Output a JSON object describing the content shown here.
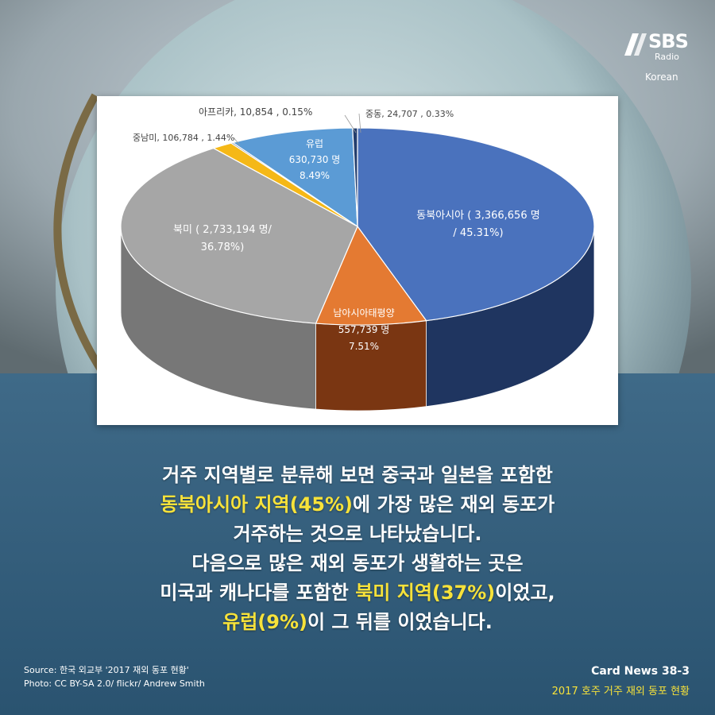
{
  "brand": {
    "name": "SBS",
    "sub": "Radio",
    "lang": "Korean"
  },
  "caption": {
    "l1": "거주 지역별로 분류해 보면 중국과 일본을 포함한",
    "l2_hl": "동북아시아 지역(45%)",
    "l2_rest": "에 가장 많은 재외 동포가",
    "l3": "거주하는 것으로 나타났습니다.",
    "l4": "다음으로 많은 재외 동포가 생활하는 곳은",
    "l5_pre": "미국과 캐나다를 포함한 ",
    "l5_hl": "북미 지역(37%)",
    "l5_post": "이었고,",
    "l6_hl": "유럽(9%)",
    "l6_post": "이 그 뒤를 이었습니다."
  },
  "source": {
    "line1": "Source: 한국 외교부 '2017 재외 동포 현황'",
    "line2": "Photo: CC BY-SA 2.0/ flickr/ Andrew Smith"
  },
  "card": {
    "number": "Card News 38-3",
    "subtitle": "2017 호주 거주 재외 동포 현황"
  },
  "chart_data": {
    "type": "pie",
    "slices": [
      {
        "name": "동북아시아",
        "value": 3366656,
        "percent": 45.31,
        "color": "#4a72bd",
        "side": "#1f3560",
        "label": [
          "동북아시아 ( 3,366,656 명",
          "/ 45.31%)"
        ]
      },
      {
        "name": "남아시아태평양",
        "value": 557739,
        "percent": 7.51,
        "color": "#e47a32",
        "side": "#7a3612",
        "label": [
          "남아시아태평양",
          "557,739 명",
          "7.51%"
        ]
      },
      {
        "name": "북미",
        "value": 2733194,
        "percent": 36.78,
        "color": "#a6a6a6",
        "side": "#777777",
        "label": [
          "북미 ( 2,733,194 명/",
          "36.78%)"
        ]
      },
      {
        "name": "중남미",
        "value": 106784,
        "percent": 1.44,
        "color": "#f5b817",
        "side": "#9a7008",
        "label": [
          "중남미, 106,784 , 1.44%"
        ]
      },
      {
        "name": "아프리카",
        "value": 10854,
        "percent": 0.15,
        "color": "#2b4f8a",
        "side": "#1a2e52",
        "label": [
          "아프리카,   10,854  ,  0.15%"
        ]
      },
      {
        "name": "유럽",
        "value": 630730,
        "percent": 8.49,
        "color": "#5b9bd5",
        "side": "#2e5d8a",
        "label": [
          "유럽",
          "630,730 명",
          "8.49%"
        ]
      },
      {
        "name": "중동",
        "value": 24707,
        "percent": 0.33,
        "color": "#233e6e",
        "side": "#152647",
        "label": [
          "중동, 24,707 , 0.33%"
        ]
      }
    ]
  }
}
